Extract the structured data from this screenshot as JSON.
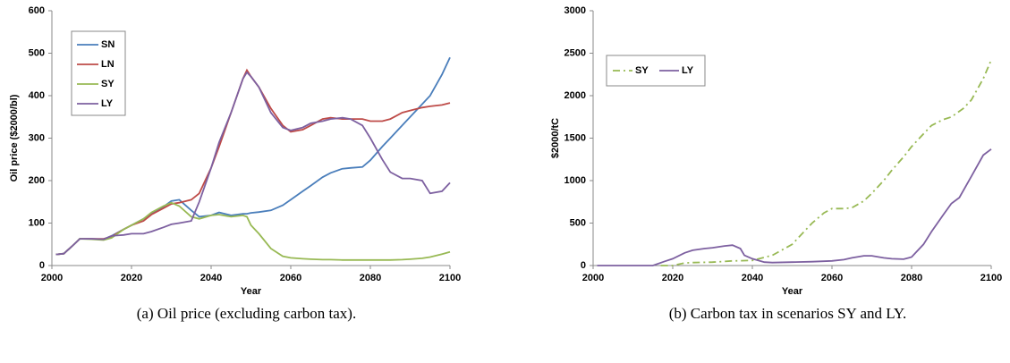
{
  "chart_data": [
    {
      "type": "line",
      "caption": "(a)  Oil price (excluding carbon tax).",
      "xlabel": "Year",
      "ylabel": "Oil price ($2000/bl)",
      "xlim": [
        2000,
        2100
      ],
      "xticks": [
        2000,
        2020,
        2040,
        2060,
        2080,
        2100
      ],
      "ylim": [
        0,
        600
      ],
      "yticks": [
        0,
        100,
        200,
        300,
        400,
        500,
        600
      ],
      "grid": false,
      "legend": "upper-left-vertical",
      "x": [
        2001,
        2003,
        2005,
        2007,
        2010,
        2013,
        2015,
        2018,
        2020,
        2023,
        2025,
        2028,
        2030,
        2032,
        2035,
        2037,
        2040,
        2042,
        2045,
        2048,
        2049,
        2050,
        2052,
        2055,
        2058,
        2060,
        2063,
        2065,
        2068,
        2070,
        2073,
        2075,
        2078,
        2080,
        2083,
        2085,
        2088,
        2090,
        2093,
        2095,
        2098,
        2100
      ],
      "series": [
        {
          "name": "SN",
          "color": "#4a7ebb",
          "values": [
            26,
            28,
            45,
            63,
            63,
            62,
            70,
            85,
            95,
            110,
            122,
            138,
            152,
            155,
            130,
            115,
            118,
            125,
            118,
            122,
            122,
            124,
            126,
            130,
            142,
            155,
            175,
            188,
            208,
            218,
            228,
            230,
            232,
            248,
            280,
            300,
            330,
            350,
            380,
            400,
            450,
            490
          ]
        },
        {
          "name": "LN",
          "color": "#be4b48",
          "values": [
            26,
            28,
            45,
            63,
            63,
            63,
            68,
            85,
            95,
            105,
            120,
            135,
            145,
            148,
            155,
            170,
            230,
            280,
            360,
            440,
            460,
            445,
            420,
            370,
            330,
            315,
            320,
            330,
            345,
            348,
            345,
            345,
            345,
            340,
            340,
            345,
            360,
            365,
            372,
            375,
            378,
            383
          ]
        },
        {
          "name": "SY",
          "color": "#98b954",
          "values": [
            26,
            28,
            45,
            63,
            62,
            60,
            65,
            85,
            95,
            110,
            125,
            140,
            148,
            140,
            115,
            110,
            118,
            120,
            115,
            118,
            115,
            95,
            75,
            40,
            22,
            18,
            16,
            15,
            14,
            14,
            13,
            13,
            13,
            13,
            13,
            13,
            14,
            15,
            17,
            20,
            27,
            32
          ]
        },
        {
          "name": "LY",
          "color": "#7d60a0",
          "values": [
            26,
            28,
            45,
            63,
            63,
            62,
            70,
            72,
            75,
            75,
            80,
            90,
            97,
            100,
            105,
            150,
            230,
            290,
            360,
            440,
            455,
            445,
            420,
            360,
            325,
            318,
            325,
            335,
            340,
            345,
            348,
            345,
            330,
            300,
            250,
            220,
            205,
            205,
            200,
            170,
            175,
            195
          ]
        }
      ]
    },
    {
      "type": "line",
      "caption": "(b)  Carbon tax in scenarios SY and LY.",
      "xlabel": "Year",
      "ylabel": "$2000/tC",
      "xlim": [
        2000,
        2100
      ],
      "xticks": [
        2000,
        2020,
        2040,
        2060,
        2080,
        2100
      ],
      "ylim": [
        0,
        3000
      ],
      "yticks": [
        0,
        500,
        1000,
        1500,
        2000,
        2500,
        3000
      ],
      "grid": false,
      "legend": "upper-left-horizontal",
      "series": [
        {
          "name": "SY",
          "color": "#98b954",
          "dash": "dashdot",
          "x": [
            2017,
            2020,
            2023,
            2025,
            2030,
            2035,
            2040,
            2045,
            2050,
            2055,
            2058,
            2060,
            2063,
            2065,
            2068,
            2070,
            2073,
            2075,
            2078,
            2080,
            2083,
            2085,
            2088,
            2090,
            2093,
            2095,
            2098,
            2100
          ],
          "values": [
            0,
            0,
            30,
            35,
            40,
            55,
            60,
            120,
            250,
            500,
            620,
            670,
            670,
            680,
            760,
            850,
            1000,
            1120,
            1280,
            1400,
            1550,
            1650,
            1720,
            1750,
            1850,
            1950,
            2200,
            2420
          ]
        },
        {
          "name": "LY",
          "color": "#7d60a0",
          "dash": "solid",
          "x": [
            2001,
            2010,
            2015,
            2018,
            2020,
            2023,
            2025,
            2028,
            2030,
            2033,
            2035,
            2037,
            2038,
            2040,
            2043,
            2045,
            2050,
            2055,
            2060,
            2063,
            2065,
            2068,
            2070,
            2073,
            2075,
            2078,
            2080,
            2083,
            2085,
            2088,
            2090,
            2092,
            2095,
            2098,
            2100
          ],
          "values": [
            0,
            0,
            0,
            50,
            80,
            150,
            180,
            200,
            210,
            230,
            240,
            200,
            120,
            80,
            40,
            35,
            40,
            45,
            55,
            70,
            90,
            115,
            115,
            90,
            80,
            75,
            100,
            250,
            400,
            600,
            730,
            800,
            1050,
            1300,
            1370
          ]
        }
      ]
    }
  ]
}
